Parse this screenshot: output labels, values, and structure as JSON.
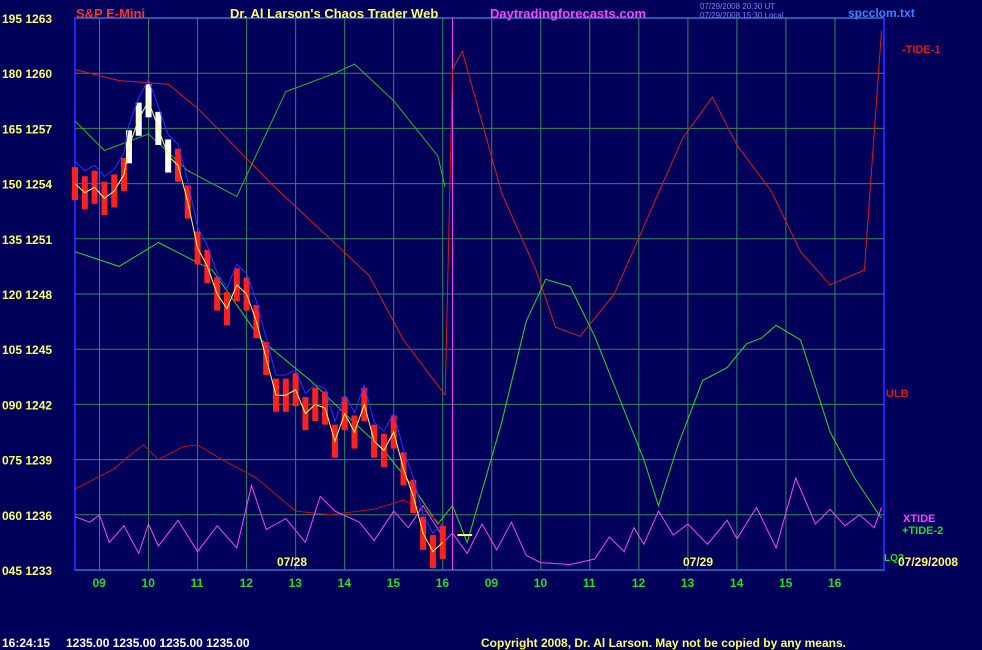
{
  "header": {
    "instrument": "S&P E-Mini",
    "title": "Dr. Al Larson's Chaos Trader Web",
    "site": "Daytradingforecasts.com",
    "stamp1": "07/29/2008 20:30 UT",
    "stamp2": "07/29/2008 15:30 Local",
    "file": "spcclom.txt"
  },
  "footer": {
    "time": "16:24:15",
    "quote": "1235.00  1235.00  1235.00  1235.00",
    "copyright": "Copyright 2008, Dr. Al Larson. May not be copied by any means."
  },
  "labels": {
    "tide1": "-TIDE-1",
    "ulb": "ULB",
    "xtide": "XTIDE",
    "tide2": "+TIDE-2",
    "date1": "07/28",
    "date2": "07/29",
    "date_end": "07/29/2008",
    "corner": "LQ?"
  },
  "colors": {
    "background": "#00005a",
    "grid": "#2e8b57",
    "frame": "#2020ff",
    "price": "#ff2020",
    "price_hl": "#ffffff",
    "ma_short": "#ffff60",
    "ma_long": "#3030ff",
    "tide1": "#e01818",
    "tide2": "#20e020",
    "xtide": "#ff40ff",
    "red_band": "#c01010",
    "green_band": "#20c020"
  },
  "chart_data": {
    "type": "line",
    "title": "S&P E-Mini",
    "y_left_ticks": [
      "195",
      "180",
      "165",
      "150",
      "135",
      "120",
      "105",
      "090",
      "075",
      "060",
      "045"
    ],
    "y_right_ticks": [
      "1263",
      "1260",
      "1257",
      "1254",
      "1251",
      "1248",
      "1245",
      "1242",
      "1239",
      "1236",
      "1233"
    ],
    "ylim": [
      1233,
      1263
    ],
    "x_ticks": [
      "09",
      "10",
      "11",
      "12",
      "13",
      "14",
      "15",
      "16",
      "09",
      "10",
      "11",
      "12",
      "13",
      "14",
      "15",
      "16"
    ],
    "x_hours": [
      9,
      10,
      11,
      12,
      13,
      14,
      15,
      16,
      9,
      10,
      11,
      12,
      13,
      14,
      15,
      16
    ],
    "series": [
      {
        "name": "-TIDE-1",
        "x": [
          8.5,
          9.4,
          10.4,
          11.0,
          12.5,
          13.7,
          14.5,
          15.2,
          16.05,
          16.2,
          16.4,
          17.2,
          17.9,
          18.3,
          18.8,
          19.5,
          20.4,
          20.9,
          21.5,
          22.0,
          22.7,
          23.3,
          23.9,
          24.6,
          24.95
        ],
        "values": [
          1260.2,
          1259.6,
          1259.4,
          1258.1,
          1254.0,
          1251.0,
          1249.0,
          1245.5,
          1242.5,
          1260.2,
          1261.2,
          1253.5,
          1249.3,
          1246.2,
          1245.7,
          1248.0,
          1253.5,
          1256.5,
          1258.7,
          1256.1,
          1253.6,
          1250.3,
          1248.5,
          1249.3,
          1262.3
        ]
      },
      {
        "name": "+TIDE-2",
        "x": [
          8.5,
          9.4,
          10.2,
          11.3,
          12.3,
          13.3,
          14.2,
          14.8,
          15.4,
          15.9,
          16.2,
          16.5,
          17.2,
          17.7,
          18.1,
          18.6,
          19.1,
          20.1,
          20.4,
          20.8,
          21.3,
          21.8,
          22.2,
          22.5,
          22.8,
          23.3,
          23.9,
          24.4,
          24.95
        ],
        "values": [
          1250.3,
          1249.5,
          1250.8,
          1249.3,
          1245.5,
          1243.3,
          1241.0,
          1239.5,
          1237.5,
          1235.5,
          1236.5,
          1234.5,
          1241.0,
          1246.5,
          1248.8,
          1248.4,
          1245.7,
          1239.0,
          1236.5,
          1239.8,
          1243.3,
          1244.0,
          1245.3,
          1245.6,
          1246.3,
          1245.5,
          1240.5,
          1238.0,
          1235.8
        ]
      },
      {
        "name": "green_upper",
        "x": [
          8.5,
          9.1,
          10.0,
          10.8,
          11.8,
          12.8,
          13.8,
          14.2,
          15.0,
          15.9,
          16.05
        ],
        "values": [
          1257.4,
          1255.8,
          1256.7,
          1254.7,
          1253.3,
          1259.0,
          1260.0,
          1260.5,
          1258.5,
          1255.5,
          1253.8
        ]
      },
      {
        "name": "red_lower",
        "x": [
          8.5,
          9.3,
          9.6,
          9.9,
          10.2,
          10.7,
          11.0,
          11.5,
          12.2,
          13.0,
          13.7,
          14.6,
          15.2,
          15.7,
          16.05
        ],
        "values": [
          1237.4,
          1238.5,
          1239.2,
          1239.8,
          1239.0,
          1239.7,
          1239.8,
          1239.0,
          1238.0,
          1236.2,
          1236.0,
          1236.3,
          1236.8,
          1236.1,
          1235.3
        ]
      },
      {
        "name": "XTIDE",
        "x": [
          8.5,
          8.8,
          9.0,
          9.2,
          9.5,
          9.8,
          10.0,
          10.2,
          10.6,
          11.0,
          11.4,
          11.8,
          12.1,
          12.4,
          12.8,
          13.2,
          13.5,
          13.8,
          14.3,
          14.6,
          15.0,
          15.3,
          15.6,
          16.05,
          16.2,
          16.5,
          16.8,
          17.1,
          17.4,
          17.7,
          18.0,
          18.6,
          19.1,
          19.4,
          19.7,
          19.9,
          20.1,
          20.4,
          20.7,
          21.0,
          21.4,
          21.8,
          22.0,
          22.4,
          22.8,
          23.2,
          23.6,
          23.9,
          24.2,
          24.5,
          24.8,
          24.95
        ],
        "values": [
          1235.9,
          1235.6,
          1236.0,
          1234.5,
          1235.4,
          1233.9,
          1235.5,
          1234.3,
          1235.7,
          1234.0,
          1235.4,
          1234.2,
          1237.6,
          1235.2,
          1235.8,
          1234.5,
          1237.0,
          1236.2,
          1235.6,
          1234.6,
          1236.2,
          1235.3,
          1236.5,
          1234.6,
          1235.0,
          1233.9,
          1235.5,
          1234.1,
          1235.6,
          1233.8,
          1233.4,
          1233.3,
          1233.6,
          1234.8,
          1234.0,
          1235.3,
          1234.4,
          1236.2,
          1234.9,
          1235.5,
          1234.4,
          1235.7,
          1234.7,
          1236.4,
          1234.2,
          1238.0,
          1235.5,
          1236.3,
          1235.4,
          1236.0,
          1235.3,
          1236.4
        ]
      }
    ],
    "price_bars": {
      "x": [
        8.5,
        8.7,
        8.9,
        9.1,
        9.3,
        9.5,
        9.6,
        9.8,
        10.0,
        10.2,
        10.4,
        10.6,
        10.8,
        11.0,
        11.2,
        11.4,
        11.6,
        11.8,
        12.0,
        12.2,
        12.4,
        12.6,
        12.8,
        13.0,
        13.2,
        13.4,
        13.6,
        13.8,
        14.0,
        14.2,
        14.4,
        14.6,
        14.8,
        15.0,
        15.2,
        15.4,
        15.6,
        15.8,
        16.0
      ],
      "values": [
        1254.0,
        1253.5,
        1253.8,
        1253.2,
        1253.6,
        1254.5,
        1256.0,
        1257.5,
        1258.5,
        1257.0,
        1255.5,
        1255.0,
        1253.0,
        1250.5,
        1249.5,
        1248.0,
        1247.2,
        1248.5,
        1248.0,
        1246.5,
        1244.5,
        1242.5,
        1242.5,
        1242.8,
        1241.5,
        1242.0,
        1241.8,
        1240.0,
        1241.5,
        1240.5,
        1242.0,
        1240.0,
        1239.5,
        1240.5,
        1238.5,
        1237.0,
        1235.0,
        1234.0,
        1234.5
      ]
    },
    "xlabel": "",
    "ylabel": "",
    "grid": true
  }
}
